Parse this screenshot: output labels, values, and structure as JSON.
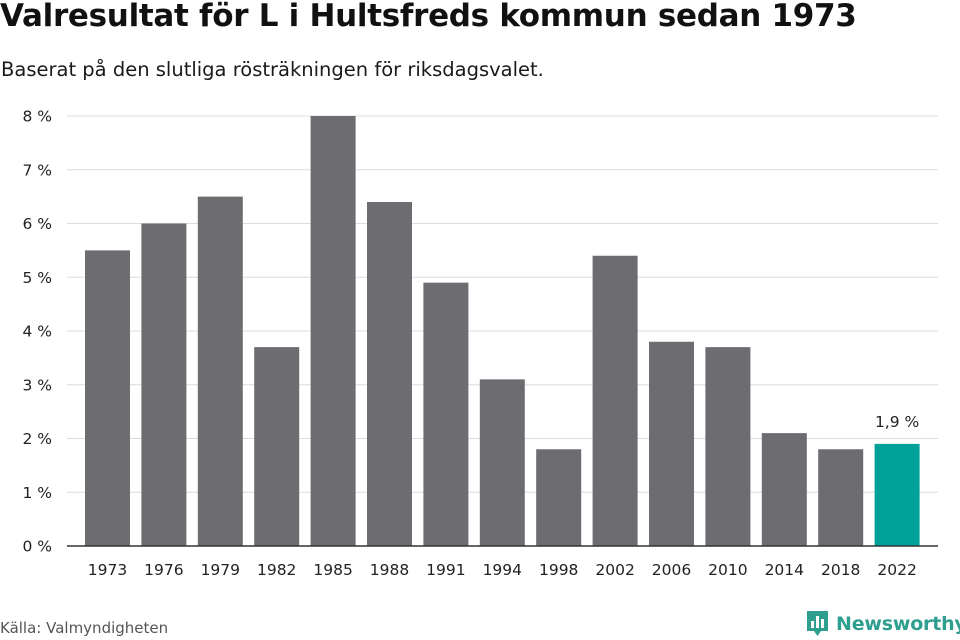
{
  "title": "Valresultat för L i Hultsfreds kommun sedan 1973",
  "subtitle": "Baserat på den slutliga rösträkningen för riksdagsvalet.",
  "source": "Källa: Valmyndigheten",
  "brand": {
    "name": "Newsworthy",
    "color": "#2e9e8f",
    "icon": "newsworthy-bar-logo-icon"
  },
  "chart_data": {
    "type": "bar",
    "categories": [
      "1973",
      "1976",
      "1979",
      "1982",
      "1985",
      "1988",
      "1991",
      "1994",
      "1998",
      "2002",
      "2006",
      "2010",
      "2014",
      "2018",
      "2022"
    ],
    "values": [
      5.5,
      6.0,
      6.5,
      3.7,
      8.0,
      6.4,
      4.9,
      3.1,
      1.8,
      5.4,
      3.8,
      3.7,
      2.1,
      1.8,
      1.9
    ],
    "ylim": [
      0,
      8
    ],
    "yticks": [
      {
        "value": 0,
        "label": "0 %"
      },
      {
        "value": 1,
        "label": "1 %"
      },
      {
        "value": 2,
        "label": "2 %"
      },
      {
        "value": 3,
        "label": "3 %"
      },
      {
        "value": 4,
        "label": "4 %"
      },
      {
        "value": 5,
        "label": "5 %"
      },
      {
        "value": 6,
        "label": "6 %"
      },
      {
        "value": 7,
        "label": "7 %"
      },
      {
        "value": 8,
        "label": "8 %"
      }
    ],
    "grid": true,
    "bar_color": "#6d6c71",
    "highlight_color": "#00a198",
    "highlight_index": 14,
    "data_labels": [
      {
        "index": 14,
        "text": "1,9 %"
      }
    ]
  }
}
